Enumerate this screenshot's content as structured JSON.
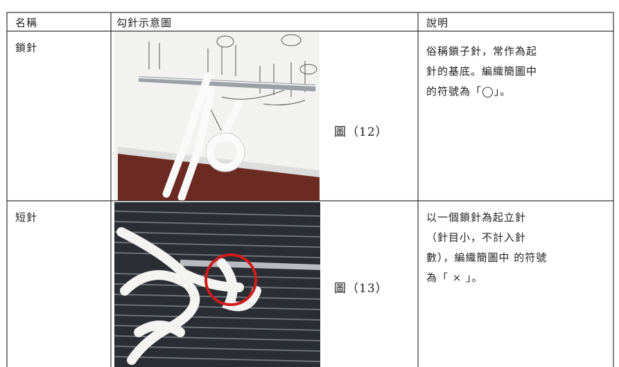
{
  "table": {
    "header": [
      "名稱",
      "勾針示意圖",
      "說明"
    ],
    "rows": [
      {
        "name": "鎖針",
        "caption": "圖（12）",
        "description": [
          "俗稱鎖子針，常作為起",
          "針的基底。編織簡圖中",
          "的符號為「◯」。"
        ]
      },
      {
        "name": "短針",
        "caption": "圖（13）",
        "description": [
          "以一個鎖針為起立針",
          "（針目小，不計入針",
          "數），編織簡圖中 的符號",
          "為「 × 」。"
        ]
      }
    ]
  }
}
